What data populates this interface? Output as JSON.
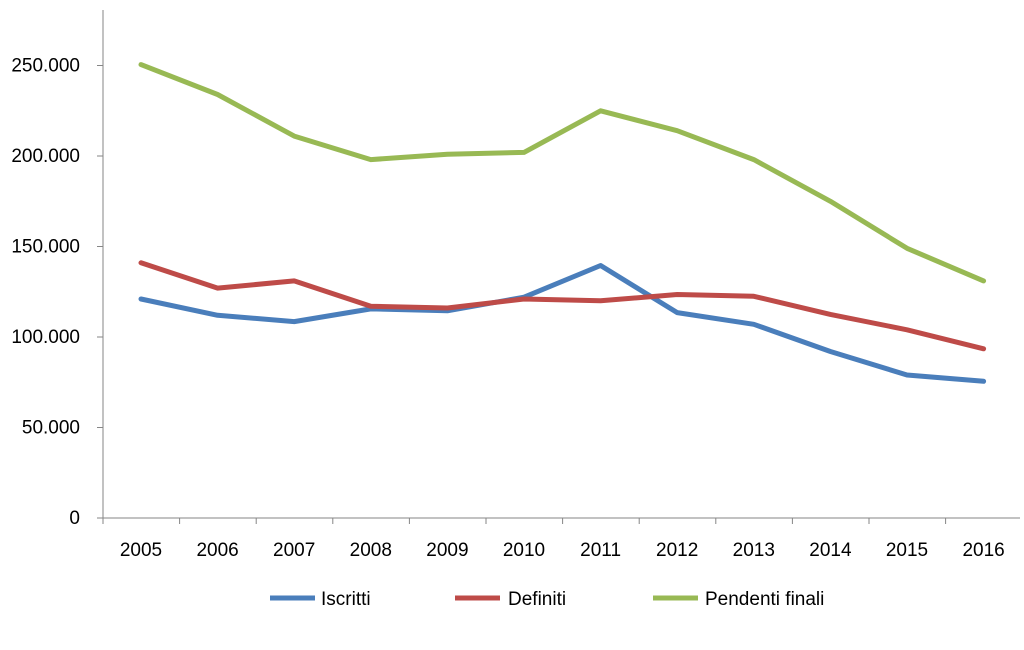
{
  "chart_data": {
    "type": "line",
    "title": "",
    "xlabel": "",
    "ylabel": "",
    "ylim": [
      0,
      260000
    ],
    "y_ticks": [
      0,
      50000,
      100000,
      150000,
      200000,
      250000
    ],
    "y_tick_labels": [
      "0",
      "50.000",
      "100.000",
      "150.000",
      "200.000",
      "250.000"
    ],
    "grid": false,
    "legend_position": "bottom",
    "categories": [
      "2005",
      "2006",
      "2007",
      "2008",
      "2009",
      "2010",
      "2011",
      "2012",
      "2013",
      "2014",
      "2015",
      "2016"
    ],
    "series": [
      {
        "name": "Iscritti",
        "color": "#4a7ebb",
        "values": [
          121000,
          112000,
          108500,
          115500,
          114500,
          122000,
          139500,
          113500,
          107000,
          92000,
          79000,
          75500
        ]
      },
      {
        "name": "Definiti",
        "color": "#be4b48",
        "values": [
          141000,
          127000,
          131000,
          117000,
          116000,
          121000,
          120000,
          123500,
          122500,
          112500,
          104000,
          93500
        ]
      },
      {
        "name": "Pendenti finali",
        "color": "#98b954",
        "values": [
          250500,
          234000,
          211000,
          198000,
          201000,
          202000,
          225000,
          214000,
          198000,
          175000,
          149000,
          131000
        ]
      }
    ]
  }
}
